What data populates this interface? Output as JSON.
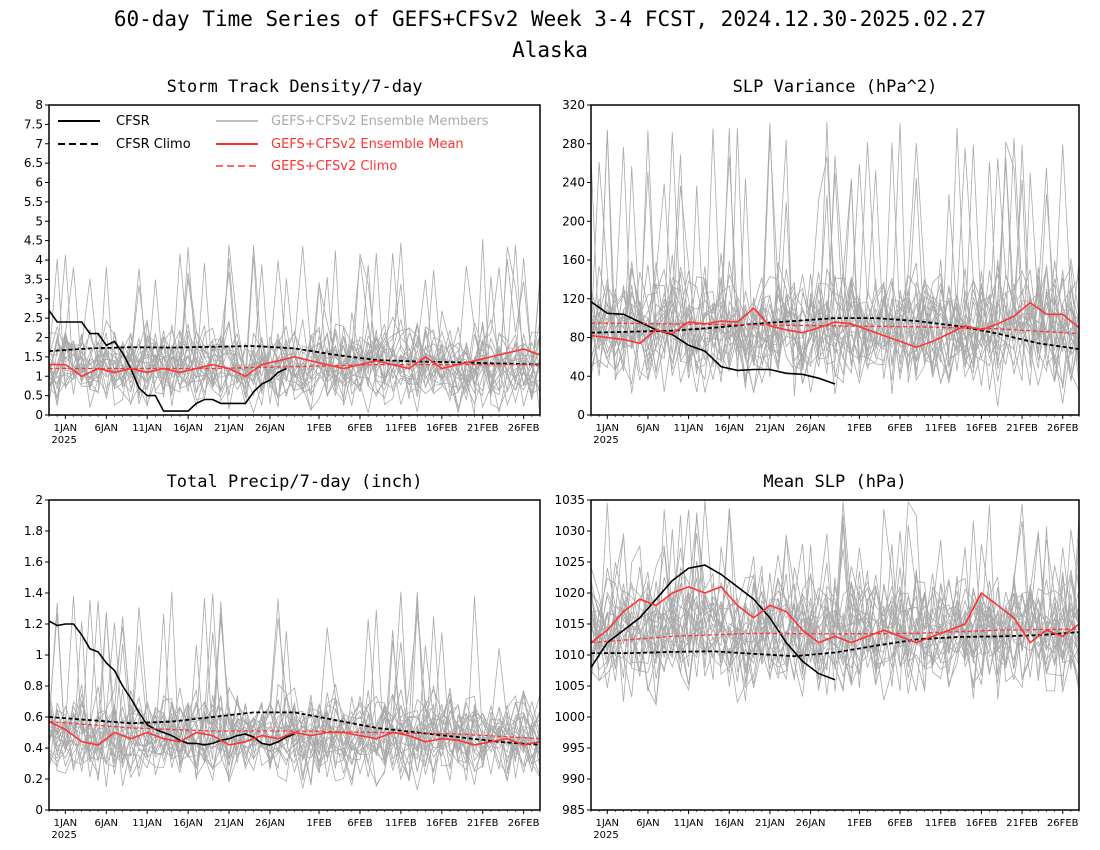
{
  "title_line1": "60-day Time Series of GEFS+CFSv2 Week 3-4 FCST, 2024.12.30-2025.02.27",
  "title_line2": "Alaska",
  "colors": {
    "cfsr": "#000000",
    "members": "#aaaaaa",
    "ens_mean": "#ff3333",
    "axis": "#000000"
  },
  "legend": {
    "cfsr": "CFSR",
    "cfsr_climo": "CFSR Climo",
    "members": "GEFS+CFSv2 Ensemble Members",
    "ens_mean": "GEFS+CFSv2 Ensemble Mean",
    "ens_climo": "GEFS+CFSv2 Climo"
  },
  "x_axis": {
    "ticks": [
      {
        "day": 2,
        "label": "1JAN"
      },
      {
        "day": 7,
        "label": "6JAN"
      },
      {
        "day": 12,
        "label": "11JAN"
      },
      {
        "day": 17,
        "label": "16JAN"
      },
      {
        "day": 22,
        "label": "21JAN"
      },
      {
        "day": 27,
        "label": "26JAN"
      },
      {
        "day": 33,
        "label": "1FEB"
      },
      {
        "day": 38,
        "label": "6FEB"
      },
      {
        "day": 43,
        "label": "11FEB"
      },
      {
        "day": 48,
        "label": "16FEB"
      },
      {
        "day": 53,
        "label": "21FEB"
      },
      {
        "day": 58,
        "label": "26FEB"
      }
    ],
    "year_label": "2025",
    "range": [
      0,
      60
    ]
  },
  "chart_data": [
    {
      "type": "line",
      "title": "Storm Track Density/7-day",
      "ylim": [
        0,
        8
      ],
      "yticks": [
        "0",
        "0.5",
        "1",
        "1.5",
        "2",
        "2.5",
        "3",
        "3.5",
        "4",
        "4.5",
        "5",
        "5.5",
        "6",
        "6.5",
        "7",
        "7.5",
        "8"
      ],
      "show_legend": true,
      "members": {
        "base": 1.3,
        "spread": 0.75,
        "max": 4.6
      },
      "series": [
        {
          "name": "CFSR",
          "x": [
            0,
            1,
            2,
            3,
            4,
            5,
            6,
            7,
            8,
            9,
            10,
            11,
            12,
            13,
            14,
            15,
            16,
            17,
            18,
            19,
            20,
            21,
            22,
            23,
            24,
            25,
            26,
            27,
            28,
            29
          ],
          "values": [
            2.7,
            2.4,
            2.4,
            2.4,
            2.4,
            2.1,
            2.1,
            1.8,
            1.9,
            1.6,
            1.2,
            0.7,
            0.5,
            0.5,
            0.1,
            0.1,
            0.1,
            0.1,
            0.3,
            0.4,
            0.4,
            0.3,
            0.3,
            0.3,
            0.3,
            0.6,
            0.8,
            0.9,
            1.1,
            1.2
          ]
        },
        {
          "name": "CFSR Climo",
          "x": [
            0,
            5,
            10,
            15,
            20,
            25,
            30,
            35,
            40,
            45,
            50,
            55,
            60
          ],
          "values": [
            1.65,
            1.72,
            1.75,
            1.74,
            1.76,
            1.78,
            1.72,
            1.55,
            1.42,
            1.38,
            1.36,
            1.33,
            1.3
          ]
        },
        {
          "name": "GEFS+CFSv2 Ensemble Mean",
          "x": [
            0,
            2,
            4,
            6,
            8,
            10,
            12,
            14,
            16,
            18,
            20,
            22,
            24,
            26,
            28,
            30,
            32,
            34,
            36,
            38,
            40,
            42,
            44,
            46,
            48,
            50,
            52,
            54,
            56,
            58,
            60
          ],
          "values": [
            1.3,
            1.3,
            1.0,
            1.2,
            1.1,
            1.2,
            1.1,
            1.2,
            1.1,
            1.2,
            1.3,
            1.2,
            1.0,
            1.3,
            1.4,
            1.5,
            1.4,
            1.3,
            1.2,
            1.3,
            1.4,
            1.3,
            1.2,
            1.5,
            1.2,
            1.3,
            1.4,
            1.5,
            1.6,
            1.7,
            1.55
          ]
        },
        {
          "name": "GEFS+CFSv2 Climo",
          "x": [
            0,
            10,
            20,
            30,
            40,
            50,
            60
          ],
          "values": [
            1.2,
            1.2,
            1.2,
            1.25,
            1.3,
            1.3,
            1.3
          ]
        }
      ]
    },
    {
      "type": "line",
      "title": "SLP Variance (hPa^2)",
      "ylim": [
        0,
        320
      ],
      "yticks": [
        "0",
        "40",
        "80",
        "120",
        "160",
        "200",
        "240",
        "280",
        "320"
      ],
      "show_legend": false,
      "members": {
        "base": 90,
        "spread": 45,
        "max": 305
      },
      "series": [
        {
          "name": "CFSR",
          "x": [
            0,
            2,
            4,
            6,
            8,
            10,
            12,
            14,
            16,
            18,
            20,
            22,
            24,
            26,
            28,
            30
          ],
          "values": [
            117,
            105,
            104,
            96,
            88,
            83,
            72,
            66,
            50,
            46,
            47,
            47,
            43,
            42,
            38,
            32
          ]
        },
        {
          "name": "CFSR Climo",
          "x": [
            0,
            5,
            10,
            15,
            20,
            25,
            30,
            35,
            40,
            45,
            50,
            55,
            60
          ],
          "values": [
            85,
            86,
            87,
            90,
            94,
            97,
            100,
            100,
            97,
            92,
            84,
            74,
            68
          ]
        },
        {
          "name": "GEFS+CFSv2 Ensemble Mean",
          "x": [
            0,
            2,
            4,
            6,
            8,
            10,
            12,
            14,
            16,
            18,
            20,
            22,
            24,
            26,
            28,
            30,
            32,
            34,
            36,
            38,
            40,
            42,
            44,
            46,
            48,
            50,
            52,
            54,
            56,
            58,
            60
          ],
          "values": [
            82,
            80,
            78,
            74,
            88,
            84,
            96,
            94,
            97,
            96,
            110,
            92,
            88,
            85,
            90,
            96,
            94,
            88,
            82,
            76,
            70,
            76,
            84,
            92,
            88,
            94,
            102,
            116,
            104,
            104,
            90
          ]
        },
        {
          "name": "GEFS+CFSv2 Climo",
          "x": [
            0,
            10,
            20,
            30,
            40,
            50,
            60
          ],
          "values": [
            95,
            94,
            93,
            92,
            91,
            89,
            84
          ]
        }
      ]
    },
    {
      "type": "line",
      "title": "Total Precip/7-day (inch)",
      "ylim": [
        0,
        2
      ],
      "yticks": [
        "0",
        "0.2",
        "0.4",
        "0.6",
        "0.8",
        "1",
        "1.2",
        "1.4",
        "1.6",
        "1.8",
        "2"
      ],
      "show_legend": false,
      "members": {
        "base": 0.48,
        "spread": 0.2,
        "max": 1.42
      },
      "series": [
        {
          "name": "CFSR",
          "x": [
            0,
            1,
            2,
            3,
            4,
            5,
            6,
            7,
            8,
            9,
            10,
            11,
            12,
            13,
            14,
            15,
            16,
            17,
            18,
            19,
            20,
            21,
            22,
            23,
            24,
            25,
            26,
            27,
            28,
            29,
            30
          ],
          "values": [
            1.22,
            1.19,
            1.2,
            1.2,
            1.13,
            1.04,
            1.02,
            0.95,
            0.9,
            0.8,
            0.72,
            0.63,
            0.55,
            0.52,
            0.5,
            0.48,
            0.45,
            0.43,
            0.43,
            0.42,
            0.43,
            0.45,
            0.46,
            0.48,
            0.49,
            0.47,
            0.43,
            0.42,
            0.44,
            0.47,
            0.49
          ]
        },
        {
          "name": "CFSR Climo",
          "x": [
            0,
            5,
            10,
            15,
            20,
            25,
            30,
            35,
            40,
            45,
            50,
            55,
            60
          ],
          "values": [
            0.6,
            0.58,
            0.56,
            0.57,
            0.6,
            0.63,
            0.63,
            0.58,
            0.53,
            0.5,
            0.47,
            0.44,
            0.42
          ]
        },
        {
          "name": "GEFS+CFSv2 Ensemble Mean",
          "x": [
            0,
            2,
            4,
            6,
            8,
            10,
            12,
            14,
            16,
            18,
            20,
            22,
            24,
            26,
            28,
            30,
            32,
            34,
            36,
            38,
            40,
            42,
            44,
            46,
            48,
            50,
            52,
            54,
            56,
            58,
            60
          ],
          "values": [
            0.57,
            0.52,
            0.44,
            0.42,
            0.5,
            0.46,
            0.5,
            0.46,
            0.44,
            0.5,
            0.48,
            0.42,
            0.44,
            0.48,
            0.46,
            0.5,
            0.48,
            0.5,
            0.5,
            0.48,
            0.46,
            0.5,
            0.48,
            0.44,
            0.46,
            0.45,
            0.42,
            0.44,
            0.46,
            0.42,
            0.44
          ]
        },
        {
          "name": "GEFS+CFSv2 Climo",
          "x": [
            0,
            10,
            20,
            30,
            40,
            50,
            60
          ],
          "values": [
            0.57,
            0.53,
            0.51,
            0.51,
            0.5,
            0.49,
            0.46
          ]
        }
      ]
    },
    {
      "type": "line",
      "title": "Mean SLP (hPa)",
      "ylim": [
        985,
        1035
      ],
      "yticks": [
        "985",
        "990",
        "995",
        "1000",
        "1005",
        "1010",
        "1015",
        "1020",
        "1025",
        "1030",
        "1035"
      ],
      "show_legend": false,
      "members": {
        "base": 1014,
        "spread": 7,
        "max": 1035
      },
      "series": [
        {
          "name": "CFSR",
          "x": [
            0,
            2,
            4,
            6,
            8,
            10,
            12,
            14,
            16,
            18,
            20,
            22,
            24,
            26,
            28,
            30
          ],
          "values": [
            1008,
            1012,
            1014,
            1016,
            1019,
            1022,
            1024,
            1024.5,
            1023,
            1021,
            1019,
            1016,
            1012,
            1009,
            1007,
            1006
          ]
        },
        {
          "name": "CFSR Climo",
          "x": [
            0,
            5,
            10,
            15,
            20,
            25,
            30,
            35,
            40,
            45,
            50,
            55,
            60
          ],
          "values": [
            1010.3,
            1010.3,
            1010.5,
            1010.6,
            1010.2,
            1009.8,
            1010.4,
            1011.5,
            1012.5,
            1012.9,
            1013,
            1013.2,
            1013.7
          ]
        },
        {
          "name": "GEFS+CFSv2 Ensemble Mean",
          "x": [
            0,
            2,
            4,
            6,
            8,
            10,
            12,
            14,
            16,
            18,
            20,
            22,
            24,
            26,
            28,
            30,
            32,
            34,
            36,
            38,
            40,
            42,
            44,
            46,
            48,
            50,
            52,
            54,
            56,
            58,
            60
          ],
          "values": [
            1012,
            1014,
            1017,
            1019,
            1018,
            1020,
            1021,
            1020,
            1021,
            1018,
            1016,
            1018,
            1017,
            1014,
            1012,
            1013,
            1012,
            1013,
            1014,
            1013,
            1012,
            1013,
            1014,
            1015,
            1020,
            1018,
            1016,
            1012,
            1014,
            1013,
            1015
          ]
        },
        {
          "name": "GEFS+CFSv2 Climo",
          "x": [
            0,
            10,
            20,
            30,
            40,
            50,
            60
          ],
          "values": [
            1012,
            1013,
            1013.5,
            1013.4,
            1013.5,
            1014,
            1014.2
          ]
        }
      ]
    }
  ]
}
